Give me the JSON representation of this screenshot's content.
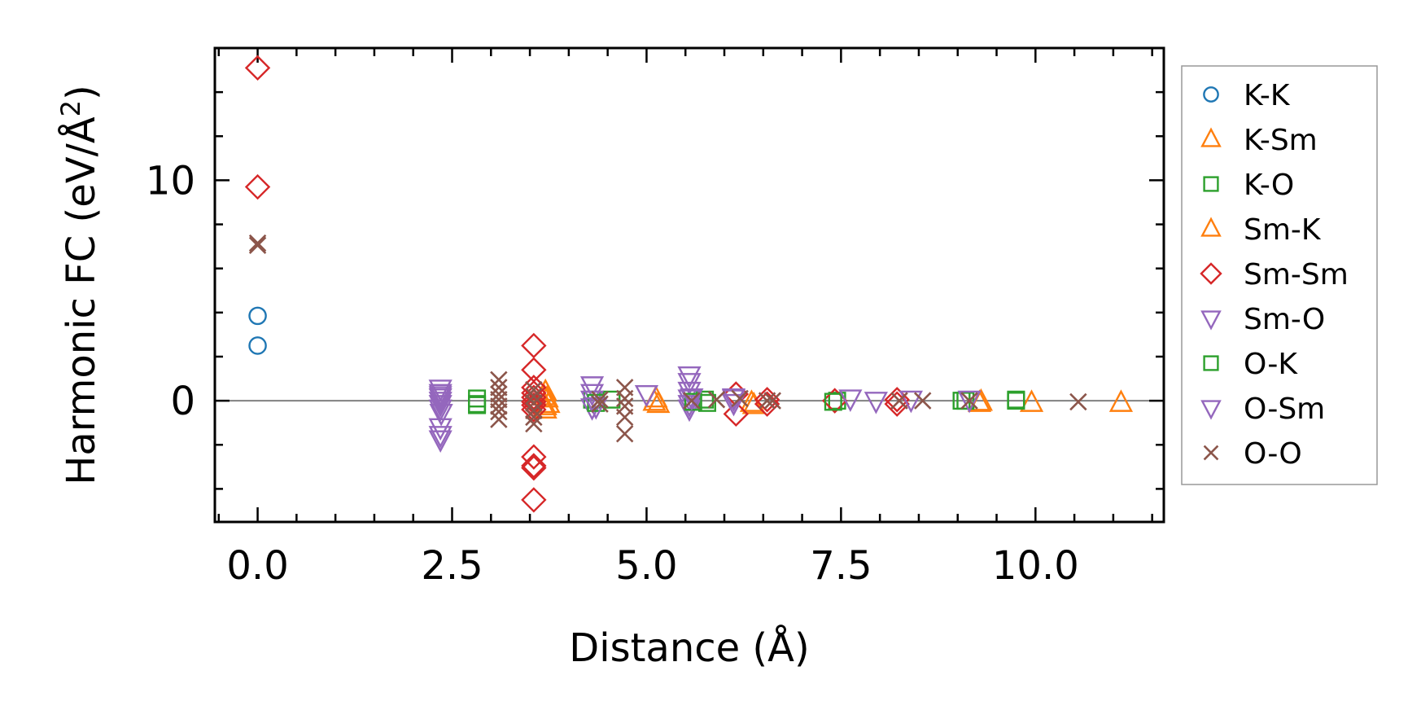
{
  "chart_data": {
    "type": "scatter",
    "title": "",
    "xlabel": "Distance (Å)",
    "ylabel_main": "Harmonic FC (eV/Å",
    "ylabel_sup": "2",
    "ylabel_close": ")",
    "xlim": [
      -0.55,
      11.65
    ],
    "ylim": [
      -5.5,
      16.0
    ],
    "xticks": [
      0.0,
      2.5,
      5.0,
      7.5,
      10.0
    ],
    "xtick_labels": [
      "0.0",
      "2.5",
      "5.0",
      "7.5",
      "10.0"
    ],
    "yticks": [
      0,
      10
    ],
    "ytick_labels": [
      "0",
      "10"
    ],
    "x_minor_step": 0.5,
    "y_minor_step": 2,
    "zero_line": true,
    "legend_position": "outside-right",
    "series": [
      {
        "name": "K-K",
        "marker": "circle",
        "filled": false,
        "color": "#1f77b4",
        "x": [
          0,
          0
        ],
        "y": [
          3.85,
          2.5
        ]
      },
      {
        "name": "K-Sm",
        "marker": "triangle-up",
        "filled": false,
        "color": "#ff7f0e",
        "x": [
          3.7,
          3.72,
          3.74,
          3.7,
          5.12,
          5.15,
          6.35,
          9.28,
          9.95,
          11.1
        ],
        "y": [
          0.4,
          0.1,
          -0.15,
          -0.4,
          0.1,
          -0.15,
          -0.1,
          -0.1,
          -0.1,
          -0.1
        ]
      },
      {
        "name": "K-O",
        "marker": "square",
        "filled": false,
        "color": "#2ca02c",
        "x": [
          2.82,
          2.82,
          4.3,
          4.55,
          5.75,
          5.78,
          7.45,
          9.05,
          9.75
        ],
        "y": [
          0.1,
          -0.2,
          0.05,
          0.05,
          0.05,
          -0.1,
          0.0,
          0.0,
          0.0
        ]
      },
      {
        "name": "Sm-K",
        "marker": "triangle-up",
        "filled": false,
        "color": "#ff7f0e",
        "x": [
          3.68,
          3.7,
          5.1,
          6.38,
          9.3
        ],
        "y": [
          0.2,
          -0.25,
          -0.05,
          -0.2,
          -0.05
        ]
      },
      {
        "name": "Sm-Sm",
        "marker": "diamond",
        "filled": false,
        "color": "#d62728",
        "x": [
          0,
          0,
          3.55,
          3.55,
          3.55,
          3.55,
          3.55,
          3.55,
          3.55,
          3.55,
          3.55,
          3.55,
          3.55,
          3.55,
          6.15,
          6.15,
          6.55,
          6.55,
          7.42,
          8.22,
          8.22
        ],
        "y": [
          15.1,
          9.7,
          2.5,
          1.4,
          0.6,
          0.35,
          0.15,
          -0.05,
          -0.2,
          -0.4,
          -2.55,
          -2.95,
          -3.05,
          -4.5,
          0.3,
          -0.6,
          0.05,
          -0.15,
          0.0,
          0.05,
          -0.15
        ]
      },
      {
        "name": "Sm-O",
        "marker": "triangle-down",
        "filled": false,
        "color": "#9467bd",
        "x": [
          2.35,
          2.35,
          2.35,
          2.35,
          2.35,
          2.35,
          2.35,
          2.35,
          2.35,
          4.3,
          4.3,
          4.3,
          4.3,
          5.55,
          5.55,
          5.55,
          5.55,
          5.55,
          5.55,
          6.12,
          6.12
        ],
        "y": [
          0.55,
          0.35,
          0.15,
          0.0,
          -0.15,
          -0.35,
          -1.2,
          -1.55,
          -1.75,
          0.7,
          0.35,
          0.05,
          -0.3,
          1.15,
          0.85,
          0.45,
          0.1,
          -0.15,
          -0.35,
          0.1,
          -0.1
        ]
      },
      {
        "name": "O-K",
        "marker": "square",
        "filled": false,
        "color": "#2ca02c",
        "x": [
          2.82,
          4.35,
          5.6,
          7.4,
          9.1,
          9.75
        ],
        "y": [
          -0.15,
          -0.1,
          -0.05,
          -0.05,
          0.0,
          0.05
        ]
      },
      {
        "name": "O-Sm",
        "marker": "triangle-down",
        "filled": false,
        "color": "#9467bd",
        "x": [
          2.35,
          2.36,
          4.35,
          5.0,
          5.58,
          6.12,
          7.62,
          7.95,
          8.4,
          9.15
        ],
        "y": [
          0.25,
          -0.55,
          -0.25,
          0.3,
          0.15,
          0.15,
          0.1,
          0.0,
          0.05,
          0.05
        ]
      },
      {
        "name": "O-O",
        "marker": "x",
        "filled": false,
        "color": "#8c564b",
        "x": [
          0,
          0,
          3.1,
          3.1,
          3.1,
          3.1,
          3.1,
          3.1,
          3.1,
          3.55,
          3.55,
          3.55,
          3.55,
          3.55,
          3.55,
          4.4,
          4.4,
          4.72,
          4.72,
          4.72,
          4.72,
          4.72,
          5.58,
          5.9,
          6.2,
          6.55,
          6.62,
          8.25,
          8.55,
          9.15,
          10.55
        ],
        "y": [
          7.15,
          7.05,
          0.95,
          0.6,
          0.3,
          0.05,
          -0.25,
          -0.5,
          -0.85,
          0.5,
          0.2,
          -0.1,
          -0.45,
          -0.75,
          -1.05,
          0.05,
          -0.15,
          0.6,
          0.1,
          -0.25,
          -0.75,
          -1.5,
          0.0,
          0.05,
          0.1,
          0.0,
          0.0,
          0.0,
          0.0,
          0.0,
          -0.05
        ]
      }
    ]
  }
}
